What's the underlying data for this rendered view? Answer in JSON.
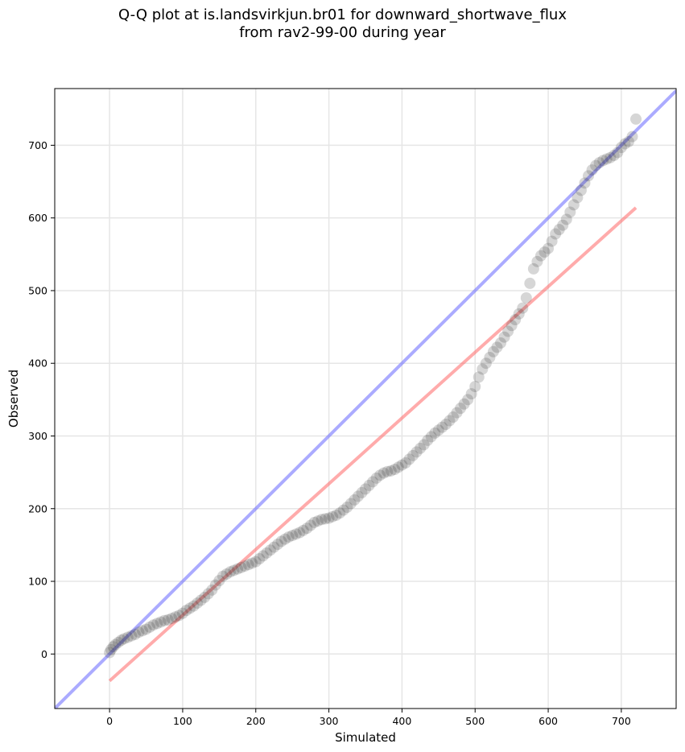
{
  "title_line1": "Q-Q plot at is.landsvirkjun.br01 for downward_shortwave_flux",
  "title_line2": "from rav2-99-00 during year",
  "chart_data": {
    "type": "scatter",
    "title": "Q-Q plot at is.landsvirkjun.br01 for downward_shortwave_flux from rav2-99-00 during year",
    "xlabel": "Simulated",
    "ylabel": "Observed",
    "xlim": [
      -75,
      775
    ],
    "ylim": [
      -75,
      778
    ],
    "xticks": [
      0,
      100,
      200,
      300,
      400,
      500,
      600,
      700
    ],
    "yticks": [
      0,
      100,
      200,
      300,
      400,
      500,
      600,
      700
    ],
    "grid": true,
    "reference_line": {
      "x": [
        -75,
        775
      ],
      "y": [
        -75,
        775
      ],
      "color": "#6666ff"
    },
    "fit_line": {
      "x": [
        0,
        720
      ],
      "y": [
        -37,
        614
      ],
      "color": "#ff6666"
    },
    "points": {
      "x": [
        0,
        2,
        5,
        8,
        12,
        16,
        20,
        25,
        30,
        35,
        40,
        45,
        50,
        55,
        60,
        65,
        70,
        75,
        80,
        85,
        90,
        95,
        100,
        105,
        110,
        115,
        120,
        125,
        130,
        135,
        140,
        145,
        150,
        155,
        160,
        165,
        170,
        175,
        180,
        185,
        190,
        195,
        200,
        205,
        210,
        215,
        220,
        225,
        230,
        235,
        240,
        245,
        250,
        255,
        260,
        265,
        270,
        275,
        280,
        285,
        290,
        295,
        300,
        305,
        310,
        315,
        320,
        325,
        330,
        335,
        340,
        345,
        350,
        355,
        360,
        365,
        370,
        375,
        380,
        385,
        390,
        395,
        400,
        405,
        410,
        415,
        420,
        425,
        430,
        435,
        440,
        445,
        450,
        455,
        460,
        465,
        470,
        475,
        480,
        485,
        490,
        495,
        500,
        505,
        510,
        515,
        520,
        525,
        530,
        535,
        540,
        545,
        550,
        555,
        560,
        565,
        570,
        575,
        580,
        585,
        590,
        595,
        600,
        605,
        610,
        615,
        620,
        625,
        630,
        635,
        640,
        645,
        650,
        655,
        660,
        665,
        670,
        675,
        680,
        685,
        690,
        695,
        700,
        705,
        710,
        715,
        720
      ],
      "y": [
        2,
        6,
        10,
        13,
        16,
        19,
        21,
        23,
        25,
        27,
        30,
        32,
        34,
        37,
        40,
        42,
        44,
        46,
        47,
        49,
        51,
        53,
        56,
        60,
        63,
        66,
        70,
        74,
        78,
        83,
        88,
        95,
        101,
        107,
        110,
        113,
        115,
        117,
        119,
        121,
        123,
        125,
        127,
        131,
        135,
        139,
        143,
        147,
        151,
        155,
        158,
        161,
        163,
        165,
        167,
        170,
        173,
        177,
        181,
        183,
        185,
        186,
        187,
        189,
        191,
        194,
        198,
        202,
        207,
        212,
        217,
        222,
        227,
        232,
        237,
        242,
        246,
        249,
        251,
        252,
        254,
        257,
        260,
        263,
        268,
        273,
        278,
        283,
        288,
        294,
        299,
        304,
        308,
        312,
        316,
        321,
        326,
        332,
        338,
        344,
        350,
        358,
        368,
        381,
        392,
        400,
        408,
        416,
        422,
        428,
        436,
        444,
        452,
        460,
        468,
        476,
        490,
        510,
        530,
        540,
        548,
        553,
        558,
        568,
        578,
        584,
        590,
        598,
        608,
        618,
        628,
        638,
        648,
        658,
        666,
        672,
        676,
        679,
        681,
        683,
        686,
        690,
        697,
        702,
        705,
        712,
        736
      ]
    }
  }
}
